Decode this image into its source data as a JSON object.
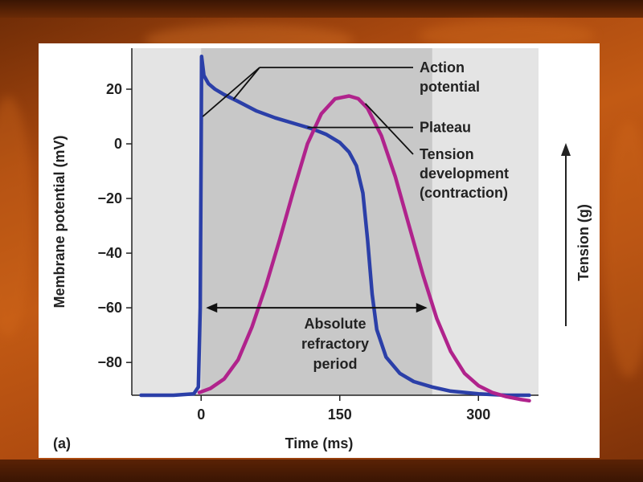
{
  "slide": {
    "panel_label": "(a)"
  },
  "chart_data": {
    "type": "line",
    "xlabel": "Time (ms)",
    "ylabel": "Membrane potential (mV)",
    "y2label": "Tension (g)",
    "xlim": [
      -75,
      365
    ],
    "ylim": [
      -92,
      35
    ],
    "x_ticks": [
      0,
      150,
      300
    ],
    "x_tick_labels": [
      "0",
      "150",
      "300"
    ],
    "y_ticks": [
      20,
      0,
      -20,
      -40,
      -60,
      -80
    ],
    "y_tick_labels": [
      "20",
      "0",
      "−20",
      "−40",
      "−60",
      "−80"
    ],
    "grid": false,
    "shaded_region": {
      "label": "Absolute refractory period",
      "x_start": 0,
      "x_end": 250,
      "lines": [
        "Absolute",
        "refractory",
        "period"
      ]
    },
    "series": [
      {
        "name": "Action potential",
        "color": "#2b3fa8",
        "x": [
          -65,
          -30,
          -8,
          -3,
          -1,
          0,
          0.5,
          3,
          8,
          15,
          25,
          40,
          60,
          80,
          100,
          120,
          135,
          150,
          160,
          168,
          175,
          180,
          185,
          190,
          200,
          215,
          230,
          250,
          270,
          300,
          330,
          355
        ],
        "y": [
          -92,
          -92,
          -91.5,
          -89,
          -60,
          0,
          32,
          25,
          22,
          20,
          18,
          15.5,
          12,
          9.5,
          7.5,
          5.5,
          3.5,
          0.5,
          -3,
          -8,
          -18,
          -35,
          -55,
          -68,
          -78,
          -84,
          -87,
          -89,
          -90.5,
          -91.5,
          -92,
          -92
        ]
      },
      {
        "name": "Tension development (contraction)",
        "color": "#b0238c",
        "x": [
          -2,
          10,
          25,
          40,
          55,
          70,
          85,
          100,
          115,
          130,
          145,
          160,
          170,
          180,
          195,
          210,
          225,
          240,
          255,
          270,
          285,
          300,
          315,
          330,
          345,
          355
        ],
        "y": [
          -91,
          -89.5,
          -86,
          -79,
          -67,
          -52,
          -35,
          -17,
          0,
          11,
          16.5,
          17.5,
          16.5,
          13,
          3,
          -12,
          -30,
          -48,
          -64,
          -76,
          -84,
          -88.5,
          -91,
          -92.5,
          -93.5,
          -94
        ]
      }
    ],
    "annotations": [
      {
        "lines": [
          "Action",
          "potential"
        ]
      },
      {
        "lines": [
          "Plateau"
        ]
      },
      {
        "lines": [
          "Tension",
          "development",
          "(contraction)"
        ]
      }
    ]
  }
}
